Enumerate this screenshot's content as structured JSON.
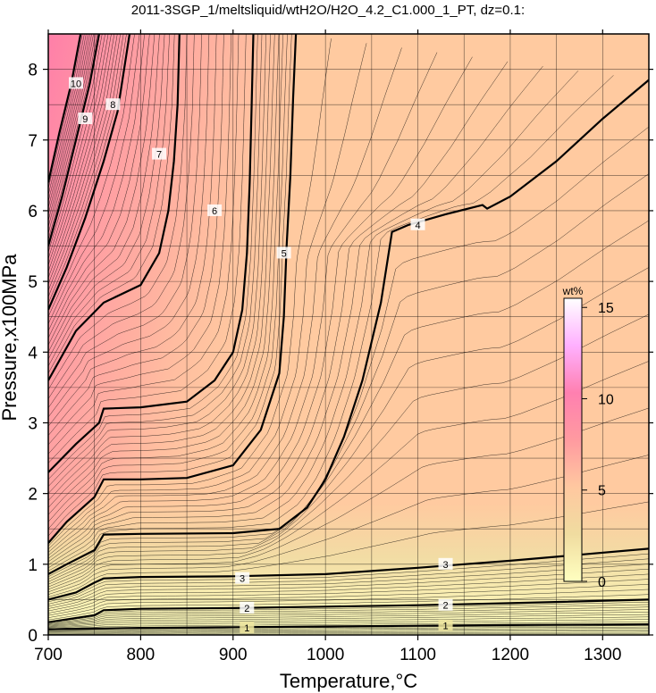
{
  "chart_data": {
    "type": "heatmap",
    "title": "2011-3SGP_1/meltsliquid/wtH2O/H2O_4.2_C1.000_1_PT, dz=0.1:",
    "xlabel": "Temperature,°C",
    "ylabel": "Pressure,x100MPa",
    "xlim": [
      700,
      1350
    ],
    "ylim": [
      0,
      8.5
    ],
    "x_ticks": [
      "700",
      "800",
      "900",
      "1000",
      "1100",
      "1200",
      "1300"
    ],
    "y_ticks": [
      "0",
      "1",
      "2",
      "3",
      "4",
      "5",
      "6",
      "7",
      "8"
    ],
    "grid": true,
    "colorbar": {
      "title": "wt%",
      "range": [
        0,
        15.5
      ],
      "ticks": [
        "0",
        "5",
        "10",
        "15"
      ],
      "colors": [
        "#ffffc0",
        "#f0dca0",
        "#ffc8a0",
        "#ff9aa0",
        "#ff80b0",
        "#ffb0ff",
        "#ffffff"
      ]
    },
    "background_color": "#ffcaa0",
    "contour_interval": 0.1,
    "major_contours": [
      {
        "level": 1,
        "label": "1",
        "points": [
          [
            700,
            0.08
          ],
          [
            750,
            0.09
          ],
          [
            800,
            0.1
          ],
          [
            900,
            0.11
          ],
          [
            1000,
            0.12
          ],
          [
            1100,
            0.13
          ],
          [
            1200,
            0.14
          ],
          [
            1350,
            0.15
          ]
        ],
        "label_positions": [
          [
            915,
            0.1
          ],
          [
            1130,
            0.13
          ]
        ]
      },
      {
        "level": 2,
        "label": "2",
        "points": [
          [
            700,
            0.18
          ],
          [
            750,
            0.28
          ],
          [
            760,
            0.35
          ],
          [
            800,
            0.37
          ],
          [
            900,
            0.38
          ],
          [
            1000,
            0.4
          ],
          [
            1100,
            0.42
          ],
          [
            1200,
            0.45
          ],
          [
            1350,
            0.5
          ]
        ],
        "label_positions": [
          [
            915,
            0.38
          ],
          [
            1130,
            0.42
          ]
        ]
      },
      {
        "level": 3,
        "label": "3",
        "points": [
          [
            700,
            0.5
          ],
          [
            730,
            0.6
          ],
          [
            750,
            0.74
          ],
          [
            760,
            0.8
          ],
          [
            800,
            0.82
          ],
          [
            900,
            0.83
          ],
          [
            1000,
            0.86
          ],
          [
            1100,
            0.95
          ],
          [
            1200,
            1.05
          ],
          [
            1350,
            1.22
          ]
        ],
        "label_positions": [
          [
            910,
            0.8
          ],
          [
            1130,
            1.0
          ]
        ]
      },
      {
        "level": 4,
        "label": "4",
        "points": [
          [
            700,
            0.86
          ],
          [
            720,
            1.0
          ],
          [
            750,
            1.2
          ],
          [
            760,
            1.42
          ],
          [
            800,
            1.43
          ],
          [
            900,
            1.44
          ],
          [
            950,
            1.5
          ],
          [
            980,
            1.8
          ],
          [
            1000,
            2.2
          ],
          [
            1020,
            2.8
          ],
          [
            1040,
            3.6
          ],
          [
            1060,
            4.7
          ],
          [
            1072,
            5.7
          ],
          [
            1090,
            5.8
          ],
          [
            1130,
            5.95
          ],
          [
            1170,
            6.08
          ],
          [
            1175,
            6.03
          ],
          [
            1200,
            6.2
          ],
          [
            1250,
            6.7
          ],
          [
            1300,
            7.3
          ],
          [
            1350,
            7.85
          ]
        ],
        "label_positions": [
          [
            1100,
            5.8
          ]
        ]
      },
      {
        "level": 5,
        "label": "5",
        "points": [
          [
            700,
            1.3
          ],
          [
            720,
            1.6
          ],
          [
            750,
            1.95
          ],
          [
            760,
            2.2
          ],
          [
            800,
            2.2
          ],
          [
            850,
            2.22
          ],
          [
            900,
            2.4
          ],
          [
            930,
            2.9
          ],
          [
            950,
            3.7
          ],
          [
            955,
            4.5
          ],
          [
            958,
            5.5
          ],
          [
            962,
            6.5
          ],
          [
            965,
            7.6
          ],
          [
            968,
            8.5
          ]
        ],
        "label_positions": [
          [
            955,
            5.4
          ]
        ]
      },
      {
        "level": 6,
        "label": "6",
        "points": [
          [
            700,
            2.3
          ],
          [
            730,
            2.7
          ],
          [
            755,
            3.0
          ],
          [
            760,
            3.2
          ],
          [
            800,
            3.22
          ],
          [
            850,
            3.3
          ],
          [
            880,
            3.6
          ],
          [
            900,
            4.0
          ],
          [
            910,
            4.6
          ],
          [
            915,
            5.4
          ],
          [
            918,
            6.4
          ],
          [
            920,
            7.4
          ],
          [
            922,
            8.5
          ]
        ],
        "label_positions": [
          [
            880,
            6.0
          ]
        ]
      },
      {
        "level": 7,
        "label": "7",
        "points": [
          [
            700,
            3.6
          ],
          [
            730,
            4.3
          ],
          [
            760,
            4.7
          ],
          [
            800,
            4.95
          ],
          [
            820,
            5.4
          ],
          [
            830,
            6.0
          ],
          [
            836,
            6.7
          ],
          [
            840,
            7.5
          ],
          [
            842,
            8.5
          ]
        ],
        "label_positions": [
          [
            820,
            6.8
          ]
        ]
      },
      {
        "level": 8,
        "label": "8",
        "points": [
          [
            700,
            4.6
          ],
          [
            720,
            5.2
          ],
          [
            740,
            5.9
          ],
          [
            760,
            6.7
          ],
          [
            775,
            7.4
          ],
          [
            788,
            8.5
          ]
        ],
        "label_positions": [
          [
            770,
            7.5
          ]
        ]
      },
      {
        "level": 9,
        "label": "9",
        "points": [
          [
            700,
            5.5
          ],
          [
            715,
            6.2
          ],
          [
            730,
            7.0
          ],
          [
            745,
            7.8
          ],
          [
            755,
            8.5
          ]
        ],
        "label_positions": [
          [
            740,
            7.3
          ]
        ]
      },
      {
        "level": 10,
        "label": "10",
        "points": [
          [
            700,
            6.4
          ],
          [
            712,
            7.1
          ],
          [
            725,
            7.8
          ],
          [
            735,
            8.5
          ]
        ],
        "label_positions": [
          [
            730,
            7.8
          ]
        ]
      }
    ]
  }
}
